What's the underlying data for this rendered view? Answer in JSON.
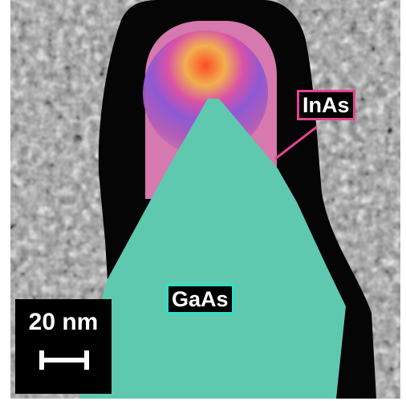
{
  "image": {
    "labels": {
      "shell": "InAs",
      "core": "GaAs"
    },
    "scale_bar": {
      "text": "20 nm"
    },
    "colors": {
      "shell_overlay": "#e07fb7",
      "core_overlay": "#5fc9b0",
      "shell_border": "#e6438f",
      "core_border": "#2fe0c8",
      "background_texture": "#8e8e8e",
      "carbon_outline": "#000000"
    }
  }
}
